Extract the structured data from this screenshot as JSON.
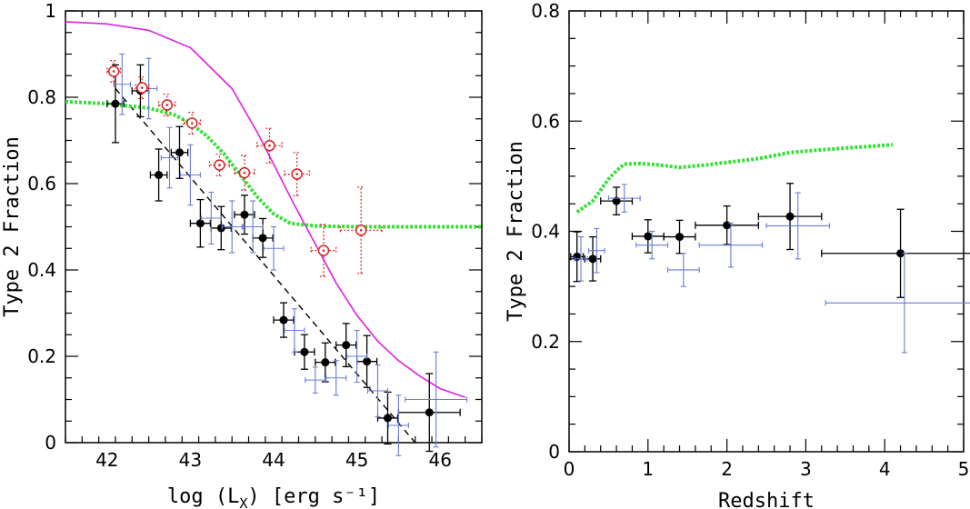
{
  "chart_data": [
    {
      "type": "scatter",
      "xlabel": "log (L_X) [erg s⁻¹]",
      "xlabel_main": "log (L",
      "xlabel_sub": "X",
      "xlabel_tail": ") [erg s⁻¹]",
      "ylabel": "Type 2 Fraction",
      "xlim": [
        41.5,
        46.5
      ],
      "ylim": [
        0,
        1
      ],
      "xticks": [
        42,
        43,
        44,
        45,
        46
      ],
      "yticks": [
        0,
        0.2,
        0.4,
        0.6,
        0.8,
        1
      ],
      "ytick_labels": [
        "0",
        "0.2",
        "0.4",
        "0.6",
        "0.8",
        "1"
      ],
      "grid": false,
      "colors": {
        "black": "#000000",
        "blue": "#6a7bd6",
        "red": "#d42020",
        "magenta": "#e020e0",
        "green": "#33e033"
      },
      "series": [
        {
          "style": "black-filled-points",
          "points": [
            {
              "x": 42.1,
              "y": 0.785,
              "xerr": 0.1,
              "yerr": 0.09
            },
            {
              "x": 42.4,
              "y": 0.815,
              "xerr": 0.1,
              "yerr": 0.06
            },
            {
              "x": 42.62,
              "y": 0.62,
              "xerr": 0.1,
              "yerr": 0.06
            },
            {
              "x": 42.87,
              "y": 0.672,
              "xerr": 0.1,
              "yerr": 0.06
            },
            {
              "x": 43.12,
              "y": 0.508,
              "xerr": 0.12,
              "yerr": 0.055
            },
            {
              "x": 43.37,
              "y": 0.497,
              "xerr": 0.12,
              "yerr": 0.05
            },
            {
              "x": 43.65,
              "y": 0.528,
              "xerr": 0.12,
              "yerr": 0.045
            },
            {
              "x": 43.87,
              "y": 0.474,
              "xerr": 0.12,
              "yerr": 0.045
            },
            {
              "x": 44.12,
              "y": 0.284,
              "xerr": 0.12,
              "yerr": 0.04
            },
            {
              "x": 44.37,
              "y": 0.21,
              "xerr": 0.12,
              "yerr": 0.04
            },
            {
              "x": 44.62,
              "y": 0.186,
              "xerr": 0.12,
              "yerr": 0.045
            },
            {
              "x": 44.87,
              "y": 0.226,
              "xerr": 0.12,
              "yerr": 0.05
            },
            {
              "x": 45.12,
              "y": 0.188,
              "xerr": 0.12,
              "yerr": 0.06
            },
            {
              "x": 45.37,
              "y": 0.057,
              "xerr": 0.12,
              "yerr": 0.06
            },
            {
              "x": 45.87,
              "y": 0.07,
              "xerr": 0.37,
              "yerr": 0.09
            }
          ]
        },
        {
          "style": "blue-crosses",
          "points": [
            {
              "x": 42.18,
              "y": 0.83,
              "xerr": 0.1,
              "yerr": 0.07
            },
            {
              "x": 42.5,
              "y": 0.82,
              "xerr": 0.1,
              "yerr": 0.07
            },
            {
              "x": 42.75,
              "y": 0.66,
              "xerr": 0.1,
              "yerr": 0.07
            },
            {
              "x": 43.0,
              "y": 0.62,
              "xerr": 0.12,
              "yerr": 0.07
            },
            {
              "x": 43.25,
              "y": 0.52,
              "xerr": 0.12,
              "yerr": 0.06
            },
            {
              "x": 43.5,
              "y": 0.5,
              "xerr": 0.12,
              "yerr": 0.06
            },
            {
              "x": 43.75,
              "y": 0.5,
              "xerr": 0.12,
              "yerr": 0.06
            },
            {
              "x": 44.0,
              "y": 0.45,
              "xerr": 0.12,
              "yerr": 0.05
            },
            {
              "x": 44.25,
              "y": 0.26,
              "xerr": 0.12,
              "yerr": 0.05
            },
            {
              "x": 44.5,
              "y": 0.145,
              "xerr": 0.12,
              "yerr": 0.03
            },
            {
              "x": 44.75,
              "y": 0.15,
              "xerr": 0.12,
              "yerr": 0.04
            },
            {
              "x": 45.0,
              "y": 0.2,
              "xerr": 0.12,
              "yerr": 0.06
            },
            {
              "x": 45.25,
              "y": 0.12,
              "xerr": 0.12,
              "yerr": 0.06
            },
            {
              "x": 45.5,
              "y": 0.04,
              "xerr": 0.12,
              "yerr": 0.07
            },
            {
              "x": 45.95,
              "y": 0.1,
              "xerr": 0.37,
              "yerr": 0.11
            }
          ]
        },
        {
          "style": "red-open-circles",
          "points": [
            {
              "x": 42.08,
              "y": 0.86,
              "xerr": 0.08,
              "yerr": 0.025
            },
            {
              "x": 42.42,
              "y": 0.822,
              "xerr": 0.08,
              "yerr": 0.025
            },
            {
              "x": 42.72,
              "y": 0.782,
              "xerr": 0.1,
              "yerr": 0.025
            },
            {
              "x": 43.02,
              "y": 0.74,
              "xerr": 0.1,
              "yerr": 0.025
            },
            {
              "x": 43.35,
              "y": 0.643,
              "xerr": 0.12,
              "yerr": 0.025
            },
            {
              "x": 43.65,
              "y": 0.625,
              "xerr": 0.12,
              "yerr": 0.04
            },
            {
              "x": 43.95,
              "y": 0.688,
              "xerr": 0.15,
              "yerr": 0.04
            },
            {
              "x": 44.28,
              "y": 0.622,
              "xerr": 0.15,
              "yerr": 0.05
            },
            {
              "x": 44.6,
              "y": 0.445,
              "xerr": 0.15,
              "yerr": 0.06
            },
            {
              "x": 45.05,
              "y": 0.492,
              "xerr": 0.25,
              "yerr": 0.1
            }
          ]
        }
      ],
      "magenta_curve": [
        [
          41.5,
          0.975
        ],
        [
          42.0,
          0.97
        ],
        [
          42.5,
          0.955
        ],
        [
          43.0,
          0.915
        ],
        [
          43.5,
          0.82
        ],
        [
          43.8,
          0.72
        ],
        [
          44.0,
          0.645
        ],
        [
          44.25,
          0.55
        ],
        [
          44.5,
          0.46
        ],
        [
          44.75,
          0.37
        ],
        [
          45.0,
          0.295
        ],
        [
          45.25,
          0.235
        ],
        [
          45.5,
          0.19
        ],
        [
          45.75,
          0.155
        ],
        [
          46.0,
          0.125
        ],
        [
          46.3,
          0.105
        ]
      ],
      "green_curve": [
        [
          41.5,
          0.79
        ],
        [
          42.0,
          0.785
        ],
        [
          42.5,
          0.775
        ],
        [
          42.8,
          0.76
        ],
        [
          43.0,
          0.74
        ],
        [
          43.2,
          0.71
        ],
        [
          43.4,
          0.67
        ],
        [
          43.6,
          0.62
        ],
        [
          43.8,
          0.57
        ],
        [
          44.0,
          0.53
        ],
        [
          44.2,
          0.508
        ],
        [
          44.5,
          0.502
        ],
        [
          45.0,
          0.5
        ],
        [
          46.5,
          0.5
        ]
      ],
      "dashed_line": [
        [
          42.1,
          0.82
        ],
        [
          45.7,
          0.0
        ]
      ]
    },
    {
      "type": "scatter",
      "xlabel": "Redshift",
      "ylabel": "Type 2 Fraction",
      "xlim": [
        0,
        5
      ],
      "ylim": [
        0,
        0.8
      ],
      "xticks": [
        0,
        1,
        2,
        3,
        4,
        5
      ],
      "yticks": [
        0,
        0.2,
        0.4,
        0.6,
        0.8
      ],
      "ytick_labels": [
        "0",
        "0.2",
        "0.4",
        "0.6",
        "0.8"
      ],
      "grid": false,
      "colors": {
        "black": "#000000",
        "blue": "#6a7bd6",
        "green": "#33e033"
      },
      "series": [
        {
          "style": "black-filled-points",
          "points": [
            {
              "x": 0.1,
              "y": 0.354,
              "xerr": 0.08,
              "yerr": 0.045
            },
            {
              "x": 0.3,
              "y": 0.35,
              "xerr": 0.1,
              "yerr": 0.04
            },
            {
              "x": 0.6,
              "y": 0.455,
              "xerr": 0.2,
              "yerr": 0.025
            },
            {
              "x": 1.0,
              "y": 0.391,
              "xerr": 0.2,
              "yerr": 0.03
            },
            {
              "x": 1.4,
              "y": 0.39,
              "xerr": 0.2,
              "yerr": 0.03
            },
            {
              "x": 2.0,
              "y": 0.411,
              "xerr": 0.4,
              "yerr": 0.035
            },
            {
              "x": 2.8,
              "y": 0.427,
              "xerr": 0.4,
              "yerr": 0.06
            },
            {
              "x": 4.2,
              "y": 0.36,
              "xerr": 1.0,
              "yerr": 0.08
            }
          ]
        },
        {
          "style": "blue-crosses",
          "points": [
            {
              "x": 0.15,
              "y": 0.35,
              "xerr": 0.08,
              "yerr": 0.04
            },
            {
              "x": 0.35,
              "y": 0.365,
              "xerr": 0.1,
              "yerr": 0.04
            },
            {
              "x": 0.7,
              "y": 0.46,
              "xerr": 0.2,
              "yerr": 0.025
            },
            {
              "x": 1.05,
              "y": 0.375,
              "xerr": 0.2,
              "yerr": 0.025
            },
            {
              "x": 1.45,
              "y": 0.33,
              "xerr": 0.2,
              "yerr": 0.03
            },
            {
              "x": 2.05,
              "y": 0.375,
              "xerr": 0.4,
              "yerr": 0.04
            },
            {
              "x": 2.9,
              "y": 0.41,
              "xerr": 0.4,
              "yerr": 0.06
            },
            {
              "x": 4.25,
              "y": 0.27,
              "xerr": 1.0,
              "yerr": 0.09
            }
          ]
        }
      ],
      "green_curve": [
        [
          0.1,
          0.435
        ],
        [
          0.2,
          0.445
        ],
        [
          0.3,
          0.455
        ],
        [
          0.4,
          0.475
        ],
        [
          0.5,
          0.495
        ],
        [
          0.6,
          0.51
        ],
        [
          0.7,
          0.522
        ],
        [
          0.9,
          0.523
        ],
        [
          1.1,
          0.521
        ],
        [
          1.4,
          0.516
        ],
        [
          1.7,
          0.52
        ],
        [
          2.0,
          0.525
        ],
        [
          2.4,
          0.532
        ],
        [
          2.8,
          0.543
        ],
        [
          3.2,
          0.548
        ],
        [
          3.6,
          0.552
        ],
        [
          4.1,
          0.557
        ]
      ]
    }
  ]
}
